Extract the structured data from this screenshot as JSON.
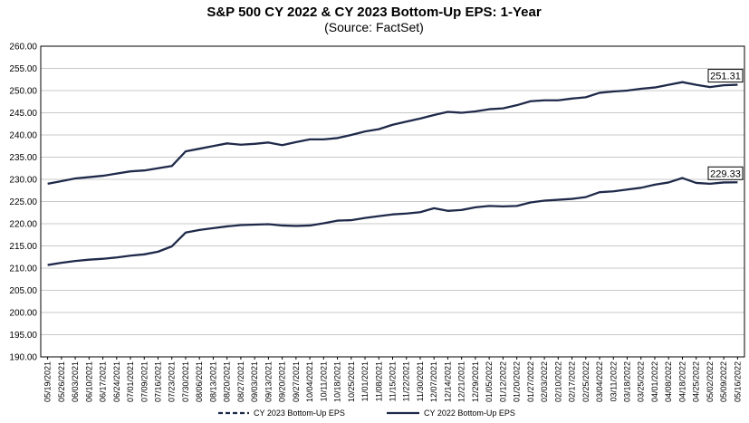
{
  "chart_data": {
    "type": "line",
    "title": "S&P 500 CY 2022 & CY 2023 Bottom-Up  EPS: 1-Year",
    "subtitle": "(Source: FactSet)",
    "xlabel": "",
    "ylabel": "",
    "ylim": [
      190,
      260
    ],
    "y_ticks": [
      "190.00",
      "195.00",
      "200.00",
      "205.00",
      "210.00",
      "215.00",
      "220.00",
      "225.00",
      "230.00",
      "235.00",
      "240.00",
      "245.00",
      "250.00",
      "255.00",
      "260.00"
    ],
    "x_ticks": [
      "05/19/2021",
      "05/26/2021",
      "06/03/2021",
      "06/10/2021",
      "06/17/2021",
      "06/24/2021",
      "07/01/2021",
      "07/09/2021",
      "07/16/2021",
      "07/23/2021",
      "07/30/2021",
      "08/06/2021",
      "08/13/2021",
      "08/20/2021",
      "08/27/2021",
      "09/03/2021",
      "09/13/2021",
      "09/20/2021",
      "09/27/2021",
      "10/04/2021",
      "10/11/2021",
      "10/18/2021",
      "10/25/2021",
      "11/01/2021",
      "11/08/2021",
      "11/15/2021",
      "11/22/2021",
      "11/30/2021",
      "12/07/2021",
      "12/14/2021",
      "12/21/2021",
      "12/29/2021",
      "01/05/2022",
      "01/12/2022",
      "01/20/2022",
      "01/27/2022",
      "02/03/2022",
      "02/10/2022",
      "02/17/2022",
      "02/25/2022",
      "03/04/2022",
      "03/11/2022",
      "03/18/2022",
      "03/25/2022",
      "04/01/2022",
      "04/08/2022",
      "04/18/2022",
      "04/25/2022",
      "05/02/2022",
      "05/09/2022",
      "05/16/2022"
    ],
    "legend_placement": "bottom",
    "grid": "horizontal",
    "series": [
      {
        "name": "CY 2023 Bottom-Up EPS",
        "color": "#1f2a4a",
        "end_label": "251.31",
        "values": [
          229.0,
          229.6,
          230.2,
          230.5,
          230.8,
          231.3,
          231.8,
          232.0,
          232.5,
          233.0,
          236.3,
          236.9,
          237.5,
          238.1,
          237.8,
          238.0,
          238.3,
          237.7,
          238.4,
          239.0,
          239.0,
          239.3,
          240.0,
          240.8,
          241.3,
          242.3,
          243.0,
          243.7,
          244.5,
          245.2,
          245.0,
          245.3,
          245.8,
          246.0,
          246.7,
          247.6,
          247.8,
          247.8,
          248.2,
          248.5,
          249.5,
          249.8,
          250.0,
          250.4,
          250.7,
          251.3,
          251.9,
          251.3,
          250.8,
          251.2,
          251.31
        ]
      },
      {
        "name": "CY 2022 Bottom-Up EPS",
        "color": "#1f2a4a",
        "end_label": "229.33",
        "values": [
          210.7,
          211.2,
          211.6,
          211.9,
          212.1,
          212.4,
          212.8,
          213.1,
          213.7,
          214.9,
          218.0,
          218.6,
          219.0,
          219.4,
          219.7,
          219.8,
          219.9,
          219.6,
          219.5,
          219.6,
          220.1,
          220.7,
          220.8,
          221.3,
          221.7,
          222.1,
          222.3,
          222.6,
          223.5,
          222.9,
          223.1,
          223.7,
          224.0,
          223.9,
          224.0,
          224.8,
          225.2,
          225.4,
          225.6,
          226.0,
          227.1,
          227.3,
          227.7,
          228.1,
          228.8,
          229.3,
          230.3,
          229.2,
          229.0,
          229.3,
          229.33
        ]
      }
    ]
  }
}
